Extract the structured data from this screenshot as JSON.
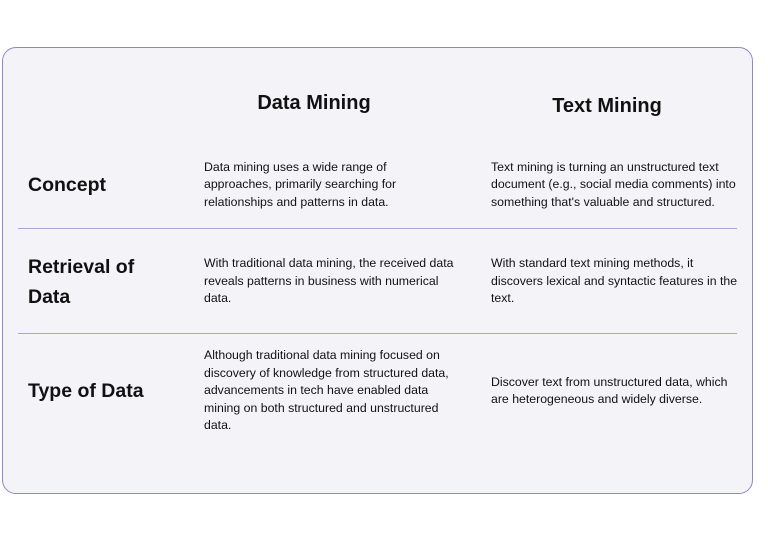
{
  "table": {
    "columns": [
      "Data Mining",
      "Text Mining"
    ],
    "rows": [
      [
        "Concept",
        "Data mining uses a wide range of approaches, primarily searching for relationships and patterns in data.",
        "Text mining is turning an unstructured text document (e.g., social media comments) into something that's valuable and structured."
      ],
      [
        "Retrieval of Data",
        "With traditional data mining, the received data reveals patterns in business with numerical data.",
        "With standard text mining methods, it discovers lexical and syntactic features in the text."
      ],
      [
        "Type of Data",
        "Although traditional data mining focused on discovery of knowledge from structured data, advancements in tech have enabled data mining on both structured and unstructured data.",
        "Discover text from unstructured data, which are heterogeneous and widely diverse."
      ]
    ]
  }
}
